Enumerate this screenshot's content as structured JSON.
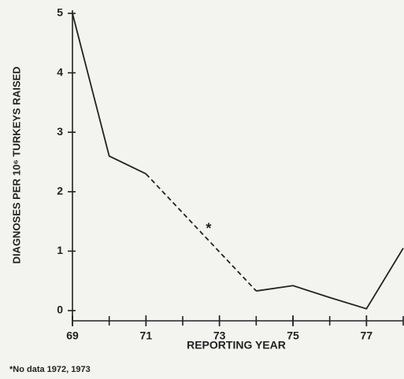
{
  "chart_data": {
    "type": "line",
    "ylabel": "DIAGNOSES PER 10⁶ TURKEYS RAISED",
    "xlabel": "REPORTING YEAR",
    "footnote": "*No data 1972, 1973",
    "annotation": "*",
    "x": [
      69,
      70,
      71,
      72,
      73,
      74,
      75,
      76,
      77,
      78
    ],
    "series": [
      {
        "color": "#222222",
        "values": [
          5,
          2.6,
          2.3,
          null,
          null,
          0.33,
          0.42,
          0.22,
          0.03,
          1.05
        ]
      }
    ],
    "xlim": [
      69,
      78
    ],
    "xticks": [
      69,
      71,
      73,
      75,
      77
    ],
    "ylim": [
      0,
      5
    ],
    "yticks": [
      0,
      1,
      2,
      3,
      4,
      5
    ],
    "gap_dashed": true
  }
}
